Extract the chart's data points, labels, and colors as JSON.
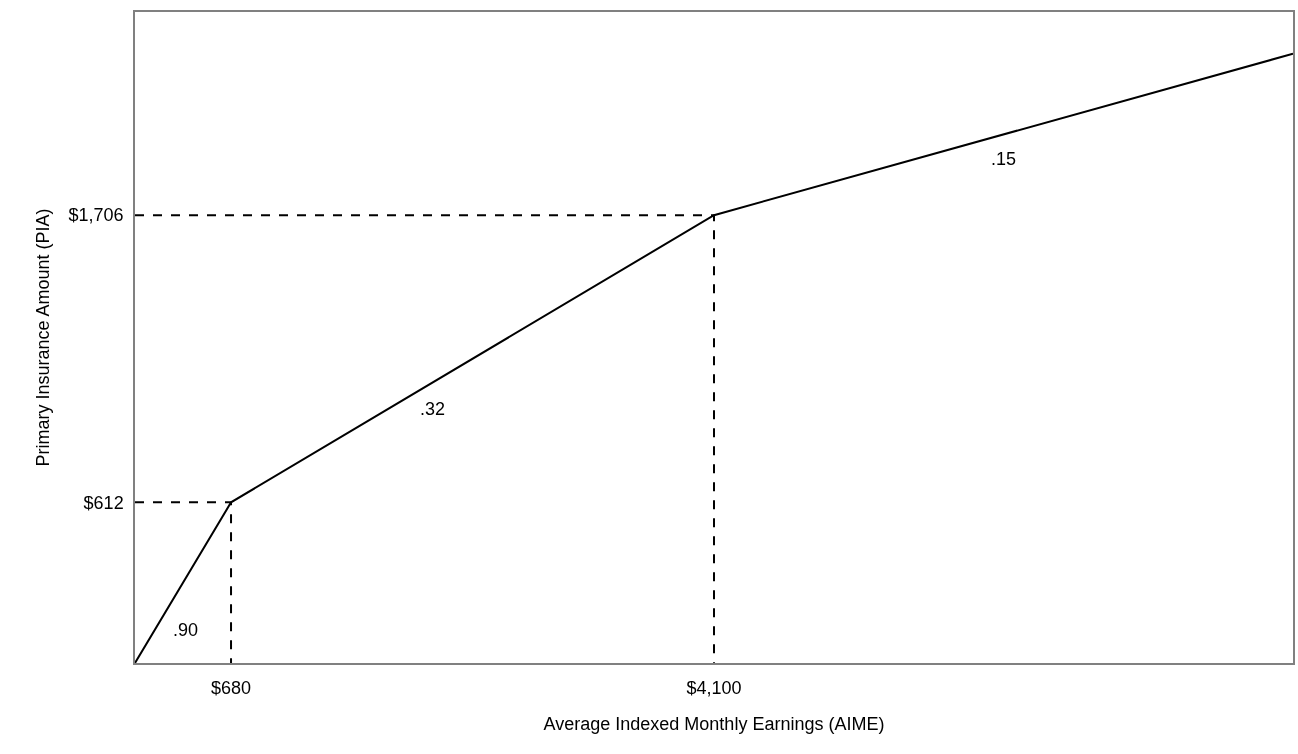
{
  "chart_data": {
    "type": "line",
    "xlabel": "Average Indexed Monthly Earnings (AIME)",
    "ylabel": "Primary Insurance Amount (PIA)",
    "series": [
      {
        "x": [
          0,
          680,
          4100,
          8200
        ],
        "values": [
          0,
          612,
          1706,
          2321
        ],
        "color": "#000000",
        "line_style": "solid"
      },
      {
        "x": [
          0,
          680,
          680
        ],
        "values": [
          612,
          612,
          0
        ],
        "color": "#000000",
        "line_style": "dashed"
      },
      {
        "x": [
          0,
          4100,
          4100
        ],
        "values": [
          1706,
          1706,
          0
        ],
        "color": "#000000",
        "line_style": "dashed"
      }
    ],
    "xlim": [
      0,
      8200
    ],
    "ylim": [
      0,
      2480
    ],
    "xticks": [
      {
        "value": 680,
        "label": "$680"
      },
      {
        "value": 4100,
        "label": "$4,100"
      }
    ],
    "yticks": [
      {
        "value": 612,
        "label": "$612"
      },
      {
        "value": 1706,
        "label": "$1,706"
      }
    ],
    "annotations": [
      ".90",
      ".32",
      ".15"
    ],
    "marker": "none"
  }
}
